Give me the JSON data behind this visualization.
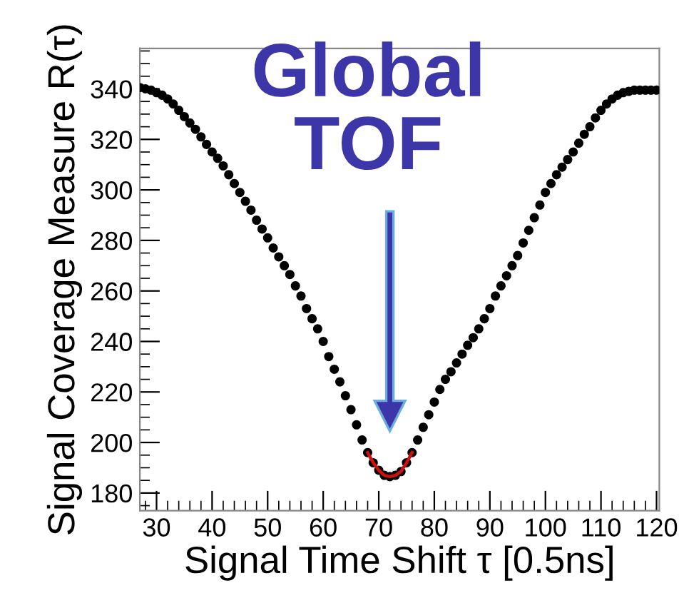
{
  "chart_data": {
    "type": "scatter",
    "xlabel": "Signal Time Shift τ [0.5ns]",
    "ylabel": "Signal Coverage Measure R(τ)",
    "series": [
      {
        "color": "#000000",
        "marker": "circle",
        "x": [
          27,
          28,
          29,
          30,
          31,
          32,
          33,
          34,
          35,
          36,
          37,
          38,
          39,
          40,
          41,
          42,
          43,
          44,
          45,
          46,
          47,
          48,
          49,
          50,
          51,
          52,
          53,
          54,
          55,
          56,
          57,
          58,
          59,
          60,
          61,
          62,
          63,
          64,
          65,
          66,
          67,
          68,
          69,
          70,
          71,
          72,
          73,
          74,
          75,
          76,
          77,
          78,
          79,
          80,
          81,
          82,
          83,
          84,
          85,
          86,
          87,
          88,
          89,
          90,
          91,
          92,
          93,
          94,
          95,
          96,
          97,
          98,
          99,
          100,
          101,
          102,
          103,
          104,
          105,
          106,
          107,
          108,
          109,
          110,
          111,
          112,
          113,
          114,
          115,
          116,
          117,
          118,
          119,
          120
        ],
        "values": [
          340.5,
          340,
          339.5,
          338.5,
          337.5,
          336,
          334,
          331.5,
          329,
          326.5,
          324,
          321,
          318,
          315,
          312.5,
          309.5,
          306,
          302.5,
          299,
          295.5,
          292,
          288,
          284.5,
          281,
          277,
          273.5,
          270,
          266.5,
          262,
          258,
          253,
          249,
          245,
          240,
          234,
          229,
          224,
          218.5,
          213,
          207,
          201,
          196,
          192,
          189,
          187,
          186.5,
          187,
          188.5,
          192,
          196,
          201,
          206,
          211,
          216,
          221,
          225,
          228,
          231.5,
          235,
          238.5,
          241.5,
          245,
          249,
          253,
          258,
          262,
          266,
          270,
          274,
          279,
          284,
          289,
          294,
          299,
          302.5,
          306,
          309,
          312,
          315,
          318.5,
          322,
          325,
          328.5,
          331.5,
          334,
          336,
          337.5,
          338.5,
          339,
          339.5,
          339.5,
          339.5,
          339.5,
          339.5
        ]
      },
      {
        "type": "line",
        "color": "#d01010",
        "marker": "none",
        "line_style": "solid",
        "x": [
          68,
          69,
          70,
          71,
          72,
          73,
          74,
          75,
          76
        ],
        "values": [
          196,
          192,
          189,
          187,
          186.5,
          187,
          188.5,
          192,
          196
        ]
      }
    ],
    "xlim": [
      27,
      120.5
    ],
    "ylim": [
      173,
      356
    ],
    "xticks": [
      30,
      40,
      50,
      60,
      70,
      80,
      90,
      100,
      110,
      120
    ],
    "yticks": [
      180,
      200,
      220,
      240,
      260,
      280,
      300,
      320,
      340
    ],
    "grid": false,
    "legend": false,
    "annotations": [
      "Global\nTOF"
    ]
  }
}
